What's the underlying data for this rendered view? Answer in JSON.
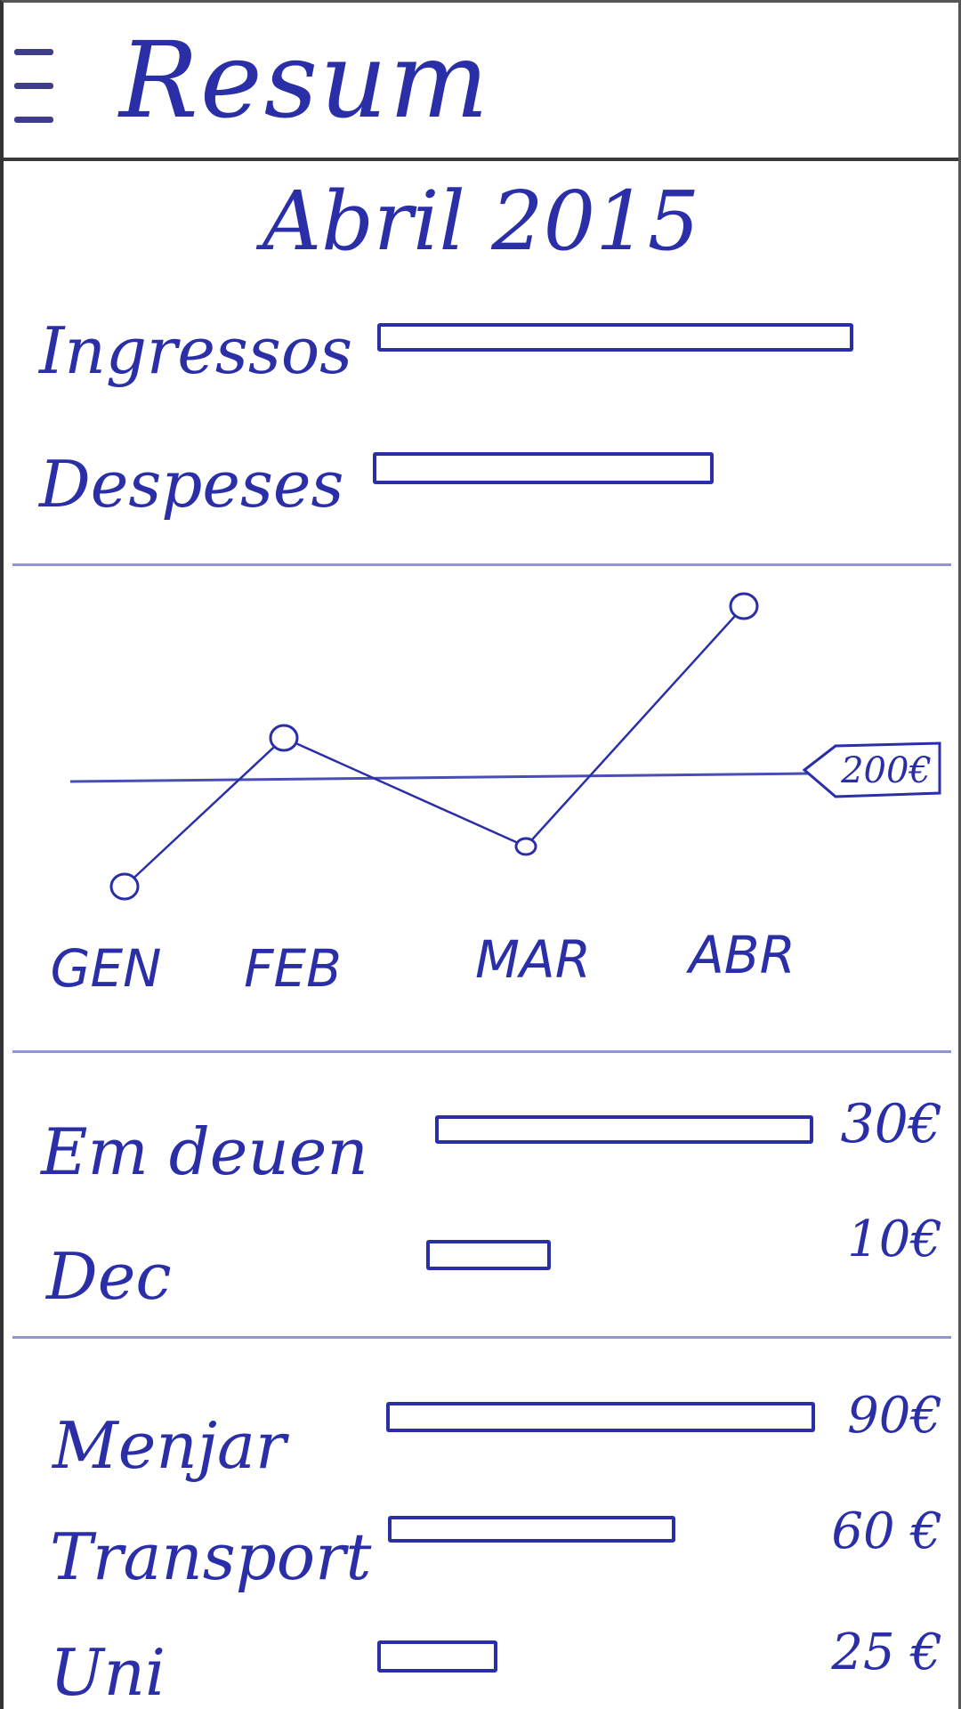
{
  "header": {
    "title": "Resum",
    "menu_icon": "hamburger-menu-icon"
  },
  "summary": {
    "month": "Abril 2015",
    "income_label": "Ingressos",
    "expenses_label": "Despeses",
    "income_fraction": 1.0,
    "expenses_fraction": 0.71
  },
  "chart_data": {
    "type": "line",
    "categories": [
      "GEN",
      "FEB",
      "MAR",
      "ABR"
    ],
    "reference_label": "200€",
    "title": "",
    "xlabel": "",
    "ylabel": ""
  },
  "debts": {
    "items": [
      {
        "label": "Em deuen",
        "amount": "30€",
        "fraction": 1.0
      },
      {
        "label": "Dec",
        "amount": "10€",
        "fraction": 0.33
      }
    ]
  },
  "categories": {
    "items": [
      {
        "label": "Menjar",
        "amount": "90€",
        "fraction": 1.0
      },
      {
        "label": "Transport",
        "amount": "60 €",
        "fraction": 0.67
      },
      {
        "label": "Uni",
        "amount": "25 €",
        "fraction": 0.28
      }
    ]
  },
  "colors": {
    "ink": "#2a2fa8",
    "border": "#3a3a3a"
  }
}
